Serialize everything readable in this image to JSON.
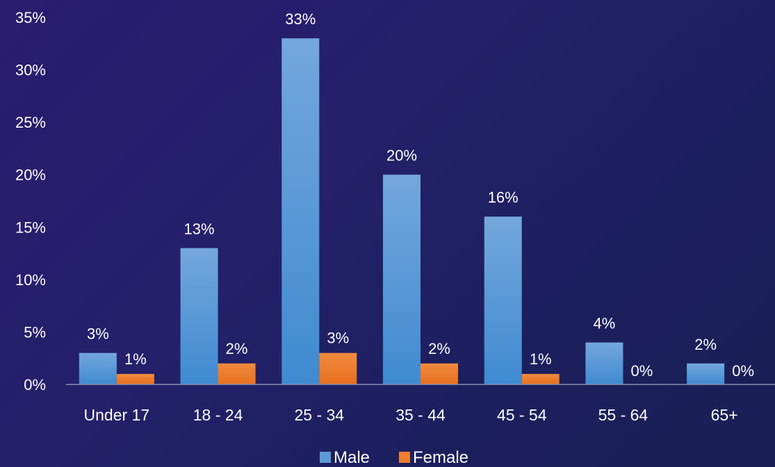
{
  "chart_data": {
    "type": "bar",
    "title": "",
    "xlabel": "",
    "ylabel": "",
    "categories": [
      "Under 17",
      "18 - 24",
      "25 - 34",
      "35 - 44",
      "45 - 54",
      "55 - 64",
      "65+"
    ],
    "series": [
      {
        "name": "Male",
        "color": "#5b9bd5",
        "values": [
          3,
          13,
          33,
          20,
          16,
          4,
          2
        ],
        "labels": [
          "3%",
          "13%",
          "33%",
          "20%",
          "16%",
          "4%",
          "2%"
        ]
      },
      {
        "name": "Female",
        "color": "#ed7d31",
        "values": [
          1,
          2,
          3,
          2,
          1,
          0,
          0
        ],
        "labels": [
          "1%",
          "2%",
          "3%",
          "2%",
          "1%",
          "0%",
          "0%"
        ]
      }
    ],
    "ylim": [
      0,
      35
    ],
    "yticks": [
      "0%",
      "5%",
      "10%",
      "15%",
      "20%",
      "25%",
      "30%",
      "35%"
    ],
    "ytick_values": [
      0,
      5,
      10,
      15,
      20,
      25,
      30,
      35
    ],
    "grid": false,
    "legend_position": "bottom-center"
  }
}
